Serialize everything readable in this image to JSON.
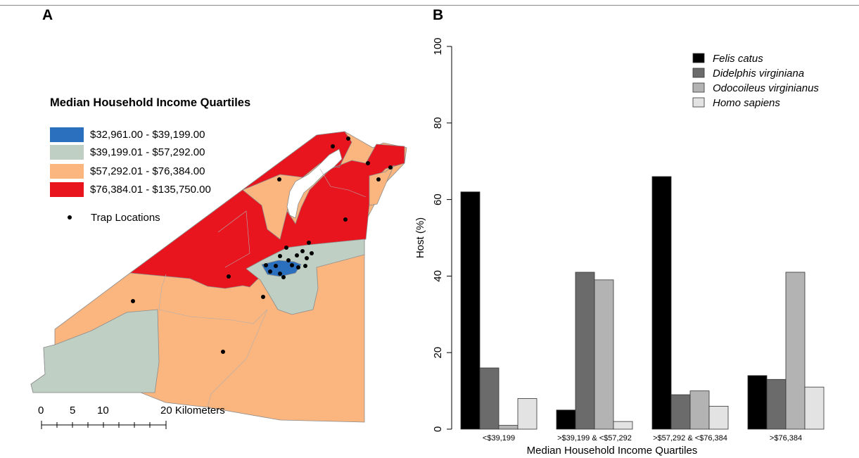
{
  "figure": {
    "panel_a_letter": "A",
    "panel_b_letter": "B"
  },
  "map": {
    "legend_title": "Median Household Income Quartiles",
    "legend": [
      {
        "label": "$32,961.00 - $39,199.00",
        "color": "#2b6fbf"
      },
      {
        "label": "$39,199.01 - $57,292.00",
        "color": "#bfcfc4"
      },
      {
        "label": "$57,292.01 - $76,384.00",
        "color": "#fbb57e"
      },
      {
        "label": "$76,384.01 - $135,750.00",
        "color": "#e8141e"
      }
    ],
    "trap_label": "Trap Locations",
    "scale": {
      "ticks": [
        "0",
        "5",
        "10",
        "20 Kilometers"
      ]
    }
  },
  "chart_data": {
    "type": "bar",
    "categories": [
      "<$39,199",
      ">$39,199 & <$57,292",
      ">$57,292 & <$76,384",
      ">$76,384"
    ],
    "series": [
      {
        "name": "Felis catus",
        "values": [
          62,
          5,
          66,
          14
        ],
        "color": "#000000"
      },
      {
        "name": "Didelphis virginiana",
        "values": [
          16,
          41,
          9,
          13
        ],
        "color": "#6b6b6b"
      },
      {
        "name": "Odocoileus virginianus",
        "values": [
          1,
          39,
          10,
          41
        ],
        "color": "#b3b3b3"
      },
      {
        "name": "Homo sapiens",
        "values": [
          8,
          2,
          6,
          11
        ],
        "color": "#e3e3e3"
      }
    ],
    "xlabel": "Median Household Income Quartiles",
    "ylabel": "Host (%)",
    "ylim": [
      0,
      100
    ],
    "yticks": [
      0,
      20,
      40,
      60,
      80,
      100
    ],
    "legend_position": "top-right",
    "grid": false
  }
}
